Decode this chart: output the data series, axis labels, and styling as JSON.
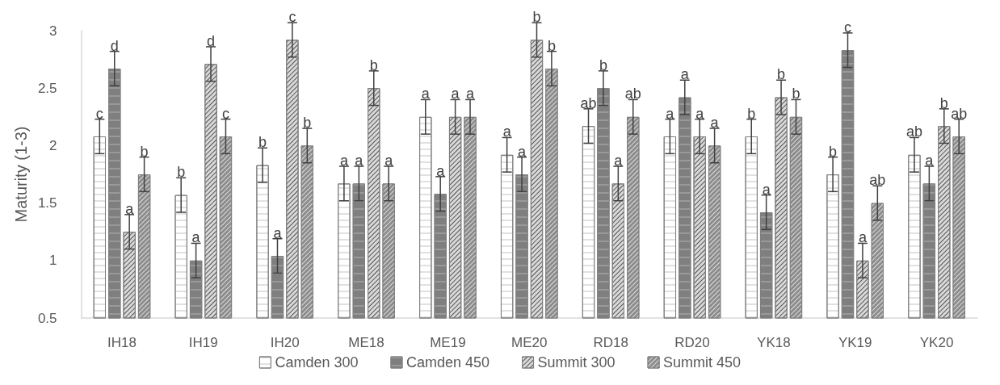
{
  "chart_data": {
    "type": "bar",
    "ylabel": "Maturity (1-3)",
    "categories": [
      "IH18",
      "IH19",
      "IH20",
      "ME18",
      "ME19",
      "ME20",
      "RD18",
      "RD20",
      "YK18",
      "YK19",
      "YK20"
    ],
    "series": [
      {
        "name": "Camden 300",
        "color": "#ffffff",
        "values": [
          2.08,
          1.57,
          1.83,
          1.67,
          2.25,
          1.92,
          2.17,
          2.08,
          2.08,
          1.75,
          1.92
        ],
        "errors": [
          0.15,
          0.15,
          0.15,
          0.15,
          0.15,
          0.15,
          0.15,
          0.15,
          0.15,
          0.15,
          0.15
        ],
        "value_labels": [
          "c",
          "b",
          "b",
          "a",
          "a",
          "a",
          "ab",
          "a",
          "b",
          "b",
          "ab"
        ]
      },
      {
        "name": "Camden 450",
        "color": "#7f7f7f",
        "values": [
          2.67,
          1.0,
          1.04,
          1.67,
          1.58,
          1.75,
          2.5,
          2.42,
          1.42,
          2.83,
          1.67
        ],
        "errors": [
          0.15,
          0.15,
          0.15,
          0.15,
          0.15,
          0.15,
          0.15,
          0.15,
          0.15,
          0.15,
          0.15
        ],
        "value_labels": [
          "d",
          "a",
          "a",
          "a",
          "a",
          "a",
          "b",
          "a",
          "a",
          "c",
          "a"
        ]
      },
      {
        "name": "Summit 300",
        "color": "#d9d9d9",
        "values": [
          1.25,
          2.71,
          2.92,
          2.5,
          2.25,
          2.92,
          1.67,
          2.08,
          2.42,
          1.0,
          2.17
        ],
        "errors": [
          0.15,
          0.15,
          0.15,
          0.15,
          0.15,
          0.15,
          0.15,
          0.15,
          0.15,
          0.15,
          0.15
        ],
        "value_labels": [
          "a",
          "d",
          "c",
          "b",
          "a",
          "b",
          "a",
          "a",
          "b",
          "a",
          "b"
        ]
      },
      {
        "name": "Summit 450",
        "color": "#8c8c8c",
        "values": [
          1.75,
          2.08,
          2.0,
          1.67,
          2.25,
          2.67,
          2.25,
          2.0,
          2.25,
          1.5,
          2.08
        ],
        "errors": [
          0.15,
          0.15,
          0.15,
          0.15,
          0.15,
          0.15,
          0.15,
          0.15,
          0.15,
          0.15,
          0.15
        ],
        "value_labels": [
          "b",
          "c",
          "b",
          "a",
          "a",
          "b",
          "ab",
          "a",
          "b",
          "ab",
          "ab"
        ]
      }
    ],
    "ylim": [
      0.5,
      3
    ],
    "yticks": [
      0.5,
      1,
      1.5,
      2,
      2.5,
      3
    ],
    "grid": false,
    "legend": "bottom"
  }
}
